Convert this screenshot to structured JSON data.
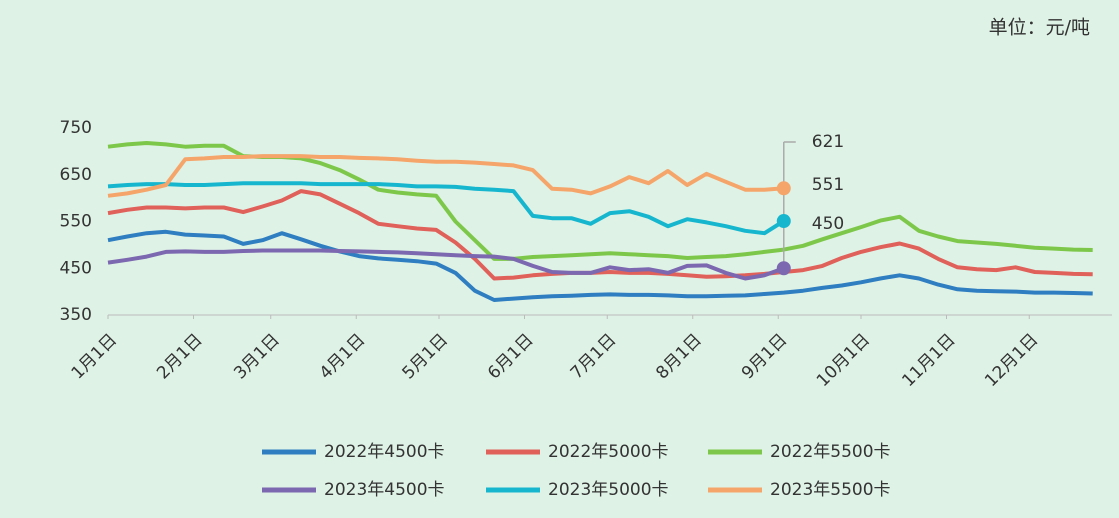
{
  "chart_data": {
    "type": "line",
    "unit": "单位：元/吨",
    "x": [
      1,
      8,
      15,
      22,
      29,
      36,
      43,
      50,
      57,
      64,
      71,
      78,
      85,
      92,
      99,
      106,
      113,
      120,
      127,
      134,
      141,
      148,
      155,
      162,
      169,
      176,
      183,
      190,
      197,
      204,
      211,
      218,
      225,
      232,
      239,
      246,
      253,
      260,
      267,
      274,
      281,
      288,
      295,
      302,
      309,
      316,
      323,
      330,
      337,
      344,
      351,
      358
    ],
    "xlim": [
      1,
      365
    ],
    "xticks": [
      {
        "value": 1,
        "label": "1月1日"
      },
      {
        "value": 32,
        "label": "2月1日"
      },
      {
        "value": 60,
        "label": "3月1日"
      },
      {
        "value": 91,
        "label": "4月1日"
      },
      {
        "value": 121,
        "label": "5月1日"
      },
      {
        "value": 152,
        "label": "6月1日"
      },
      {
        "value": 182,
        "label": "7月1日"
      },
      {
        "value": 213,
        "label": "8月1日"
      },
      {
        "value": 244,
        "label": "9月1日"
      },
      {
        "value": 274,
        "label": "10月1日"
      },
      {
        "value": 305,
        "label": "11月1日"
      },
      {
        "value": 335,
        "label": "12月1日"
      }
    ],
    "ylim": [
      350,
      750
    ],
    "yticks": [
      350,
      450,
      550,
      650,
      750
    ],
    "grid": false,
    "series": [
      {
        "name": "2022年4500卡",
        "color": "#2e7ec1",
        "values": [
          510,
          518,
          525,
          528,
          522,
          520,
          518,
          502,
          510,
          525,
          512,
          498,
          486,
          476,
          471,
          468,
          465,
          460,
          440,
          402,
          382,
          385,
          388,
          390,
          391,
          393,
          394,
          393,
          393,
          392,
          390,
          390,
          391,
          392,
          395,
          398,
          402,
          408,
          413,
          420,
          428,
          435,
          428,
          415,
          405,
          402,
          401,
          400,
          398,
          398,
          397,
          396
        ]
      },
      {
        "name": "2022年5000卡",
        "color": "#e0605a",
        "values": [
          568,
          575,
          580,
          580,
          578,
          580,
          580,
          570,
          582,
          595,
          615,
          608,
          588,
          568,
          545,
          540,
          535,
          532,
          505,
          470,
          428,
          430,
          435,
          438,
          440,
          440,
          442,
          440,
          440,
          438,
          435,
          432,
          433,
          435,
          438,
          442,
          446,
          455,
          472,
          485,
          495,
          503,
          492,
          470,
          452,
          448,
          446,
          452,
          442,
          440,
          438,
          437
        ]
      },
      {
        "name": "2022年5500卡",
        "color": "#7dc84a",
        "values": [
          710,
          715,
          718,
          715,
          710,
          712,
          712,
          690,
          688,
          688,
          685,
          675,
          660,
          640,
          618,
          612,
          608,
          605,
          550,
          510,
          470,
          470,
          474,
          476,
          478,
          480,
          482,
          480,
          478,
          476,
          472,
          474,
          476,
          480,
          485,
          490,
          498,
          512,
          525,
          538,
          552,
          560,
          530,
          518,
          508,
          505,
          502,
          498,
          494,
          492,
          490,
          489
        ]
      },
      {
        "name": "2023年4500卡",
        "color": "#7b68b0",
        "values": [
          462,
          468,
          475,
          485,
          486,
          485,
          485,
          487,
          488,
          488,
          488,
          488,
          487,
          486,
          485,
          484,
          482,
          480,
          478,
          476,
          475,
          470,
          455,
          442,
          440,
          440,
          452,
          446,
          448,
          440,
          455,
          456,
          440,
          428,
          435,
          450,
          null,
          null,
          null,
          null,
          null,
          null,
          null,
          null,
          null,
          null,
          null,
          null,
          null,
          null,
          null,
          null
        ]
      },
      {
        "name": "2023年5000卡",
        "color": "#17b6cf",
        "values": [
          625,
          628,
          630,
          630,
          628,
          628,
          630,
          632,
          632,
          632,
          632,
          630,
          630,
          630,
          630,
          628,
          625,
          625,
          624,
          620,
          618,
          615,
          562,
          557,
          557,
          545,
          568,
          572,
          560,
          540,
          555,
          548,
          540,
          530,
          525,
          551,
          null,
          null,
          null,
          null,
          null,
          null,
          null,
          null,
          null,
          null,
          null,
          null,
          null,
          null,
          null,
          null
        ]
      },
      {
        "name": "2023年5500卡",
        "color": "#f5a56a",
        "values": [
          605,
          610,
          618,
          628,
          683,
          685,
          688,
          688,
          690,
          690,
          690,
          688,
          688,
          686,
          685,
          683,
          680,
          678,
          678,
          676,
          673,
          670,
          660,
          620,
          618,
          610,
          625,
          645,
          632,
          658,
          628,
          652,
          635,
          618,
          618,
          621,
          null,
          null,
          null,
          null,
          null,
          null,
          null,
          null,
          null,
          null,
          null,
          null,
          null,
          null,
          null,
          null
        ]
      }
    ]
  }
}
